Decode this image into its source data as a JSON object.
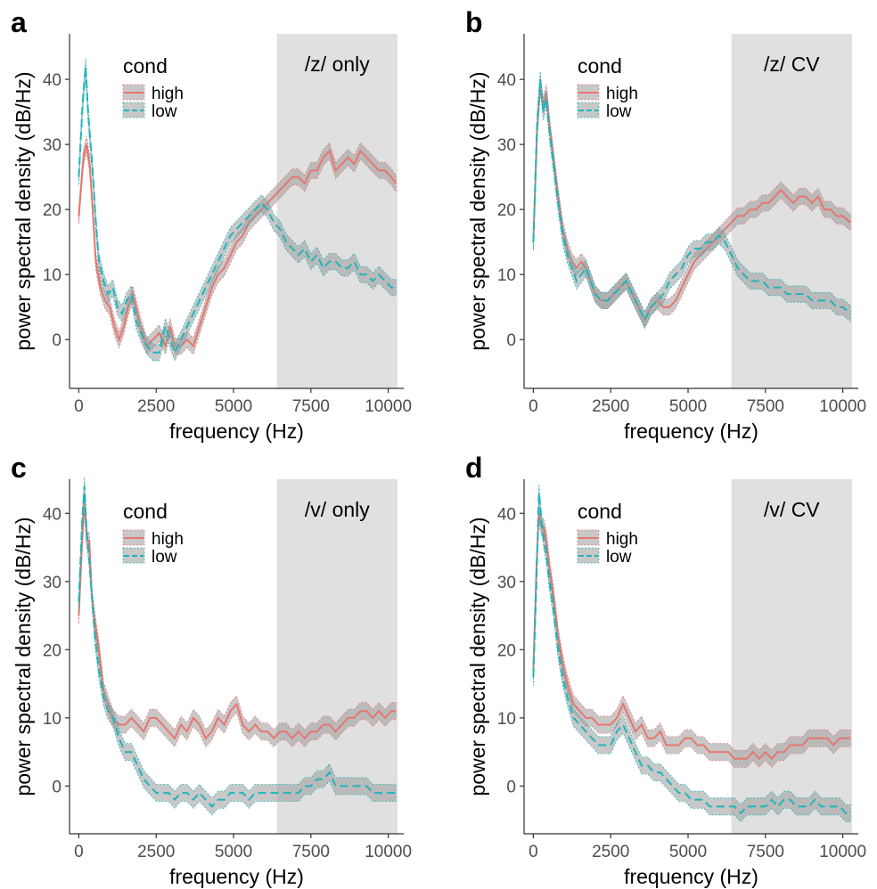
{
  "colors": {
    "high": "#E8766F",
    "low": "#1FB5BA",
    "ribbon": "#9a9a9a",
    "region": "#e0e0e0",
    "axis": "#333333"
  },
  "chart_data": [
    {
      "panel": "a",
      "type": "line",
      "xlabel": "frequency (Hz)",
      "ylabel": "power spectral density (dB/Hz)",
      "xlim": [
        -300,
        10500
      ],
      "ylim": [
        -7.5,
        47
      ],
      "xticks": [
        0,
        2500,
        5000,
        7500,
        10000
      ],
      "xtick_labels": [
        "0",
        "2500",
        "5000",
        "7500",
        "10000"
      ],
      "yticks": [
        0,
        10,
        20,
        30,
        40
      ],
      "ytick_labels": [
        "0",
        "10",
        "20",
        "30",
        "40"
      ],
      "region": {
        "x0": 6400,
        "x1": 10300,
        "label": "/z/ only"
      },
      "legend": {
        "title": "cond",
        "position": "top-left"
      },
      "series": [
        {
          "name": "high",
          "style": "solid",
          "x": [
            0,
            150,
            250,
            350,
            450,
            550,
            700,
            850,
            1000,
            1150,
            1300,
            1450,
            1600,
            1750,
            1850,
            2000,
            2200,
            2400,
            2600,
            2800,
            2950,
            3100,
            3300,
            3500,
            3700,
            3900,
            4100,
            4300,
            4500,
            4700,
            4900,
            5100,
            5300,
            5500,
            5700,
            5900,
            6100,
            6300,
            6500,
            6700,
            6900,
            7100,
            7300,
            7500,
            7700,
            7900,
            8100,
            8300,
            8500,
            8700,
            8900,
            9100,
            9300,
            9500,
            9700,
            9900,
            10100,
            10250
          ],
          "y": [
            19,
            28,
            30,
            27,
            20,
            12,
            8,
            6,
            5,
            2,
            0,
            2,
            5,
            7,
            5,
            2,
            -1,
            0,
            1,
            -1,
            2,
            -1,
            -1,
            0,
            -1,
            2,
            5,
            8,
            10,
            11,
            13,
            15,
            16,
            18,
            19,
            20,
            21,
            22,
            23,
            24,
            25,
            25,
            24,
            26,
            26,
            28,
            29,
            26,
            27,
            28,
            27,
            29,
            28,
            27,
            26,
            26,
            25,
            24
          ]
        },
        {
          "name": "low",
          "style": "dashed",
          "x": [
            0,
            120,
            220,
            300,
            380,
            460,
            550,
            650,
            800,
            950,
            1100,
            1250,
            1400,
            1550,
            1700,
            1850,
            2000,
            2200,
            2400,
            2600,
            2800,
            2950,
            3100,
            3300,
            3500,
            3700,
            3900,
            4100,
            4300,
            4500,
            4700,
            4900,
            5100,
            5300,
            5500,
            5700,
            5900,
            6100,
            6300,
            6500,
            6700,
            6900,
            7100,
            7300,
            7500,
            7700,
            7900,
            8100,
            8300,
            8500,
            8700,
            8900,
            9100,
            9300,
            9500,
            9700,
            9900,
            10100,
            10250
          ],
          "y": [
            25,
            36,
            42,
            35,
            30,
            25,
            18,
            12,
            9,
            7,
            8,
            5,
            4,
            6,
            7,
            3,
            1,
            -1,
            -2,
            -2,
            2,
            0,
            -2,
            0,
            2,
            4,
            6,
            8,
            10,
            12,
            14,
            16,
            17,
            18,
            19,
            20,
            21,
            20,
            18,
            17,
            15,
            14,
            13,
            14,
            12,
            13,
            11,
            12,
            12,
            11,
            11,
            12,
            10,
            10,
            9,
            10,
            9,
            8,
            8
          ]
        }
      ]
    },
    {
      "panel": "b",
      "type": "line",
      "xlabel": "frequency (Hz)",
      "ylabel": "power spectral density (dB/Hz)",
      "xlim": [
        -300,
        10500
      ],
      "ylim": [
        -7.5,
        47
      ],
      "xticks": [
        0,
        2500,
        5000,
        7500,
        10000
      ],
      "xtick_labels": [
        "0",
        "2500",
        "5000",
        "7500",
        "10000"
      ],
      "yticks": [
        0,
        10,
        20,
        30,
        40
      ],
      "ytick_labels": [
        "0",
        "10",
        "20",
        "30",
        "40"
      ],
      "region": {
        "x0": 6400,
        "x1": 10300,
        "label": "/z/ CV"
      },
      "legend": {
        "title": "cond",
        "position": "top-left"
      },
      "series": [
        {
          "name": "high",
          "style": "solid",
          "x": [
            0,
            120,
            220,
            320,
            420,
            520,
            650,
            800,
            950,
            1100,
            1250,
            1400,
            1550,
            1700,
            1850,
            2000,
            2200,
            2400,
            2600,
            2800,
            3000,
            3200,
            3400,
            3600,
            3800,
            4000,
            4200,
            4400,
            4600,
            4800,
            5000,
            5200,
            5400,
            5600,
            5800,
            6000,
            6200,
            6400,
            6600,
            6800,
            7000,
            7200,
            7400,
            7600,
            7800,
            8000,
            8200,
            8400,
            8600,
            8800,
            9000,
            9200,
            9400,
            9600,
            9800,
            10000,
            10250
          ],
          "y": [
            15,
            32,
            39,
            36,
            38,
            33,
            28,
            22,
            17,
            14,
            12,
            11,
            12,
            11,
            9,
            7,
            6,
            6,
            7,
            8,
            9,
            7,
            5,
            3,
            5,
            6,
            5,
            5,
            6,
            8,
            10,
            12,
            13,
            14,
            15,
            16,
            17,
            18,
            19,
            19,
            20,
            20,
            21,
            21,
            22,
            23,
            22,
            21,
            22,
            22,
            21,
            22,
            20,
            20,
            19,
            19,
            18
          ]
        },
        {
          "name": "low",
          "style": "dashed",
          "x": [
            0,
            120,
            220,
            320,
            420,
            520,
            650,
            800,
            950,
            1100,
            1250,
            1400,
            1550,
            1700,
            1850,
            2000,
            2200,
            2400,
            2600,
            2800,
            3000,
            3200,
            3400,
            3600,
            3800,
            4000,
            4200,
            4400,
            4600,
            4800,
            5000,
            5200,
            5400,
            5600,
            5800,
            6000,
            6200,
            6400,
            6600,
            6800,
            7000,
            7200,
            7400,
            7600,
            7800,
            8000,
            8200,
            8400,
            8600,
            8800,
            9000,
            9200,
            9400,
            9600,
            9800,
            10000,
            10250
          ],
          "y": [
            15,
            33,
            40,
            35,
            37,
            32,
            27,
            21,
            16,
            13,
            11,
            9,
            10,
            11,
            9,
            7,
            6,
            6,
            7,
            8,
            9,
            7,
            5,
            3,
            5,
            6,
            7,
            9,
            10,
            11,
            13,
            14,
            14,
            15,
            15,
            16,
            15,
            13,
            11,
            10,
            9,
            9,
            9,
            8,
            8,
            8,
            7,
            7,
            7,
            7,
            6,
            6,
            6,
            6,
            5,
            5,
            4
          ]
        }
      ]
    },
    {
      "panel": "c",
      "type": "line",
      "xlabel": "frequency (Hz)",
      "ylabel": "power spectral density (dB/Hz)",
      "xlim": [
        -300,
        10500
      ],
      "ylim": [
        -7,
        45
      ],
      "xticks": [
        0,
        2500,
        5000,
        7500,
        10000
      ],
      "xtick_labels": [
        "0",
        "2500",
        "5000",
        "7500",
        "10000"
      ],
      "yticks": [
        0,
        10,
        20,
        30,
        40
      ],
      "ytick_labels": [
        "0",
        "10",
        "20",
        "30",
        "40"
      ],
      "region": {
        "x0": 6400,
        "x1": 10300,
        "label": "/v/ only"
      },
      "legend": {
        "title": "cond",
        "position": "top-left"
      },
      "series": [
        {
          "name": "high",
          "style": "solid",
          "x": [
            0,
            100,
            180,
            260,
            340,
            420,
            520,
            650,
            800,
            950,
            1100,
            1300,
            1500,
            1700,
            1900,
            2100,
            2300,
            2500,
            2700,
            2900,
            3100,
            3300,
            3500,
            3700,
            3900,
            4100,
            4300,
            4500,
            4700,
            4900,
            5100,
            5300,
            5500,
            5700,
            5900,
            6100,
            6300,
            6500,
            6700,
            6900,
            7100,
            7300,
            7500,
            7700,
            7900,
            8100,
            8300,
            8500,
            8700,
            8900,
            9100,
            9300,
            9500,
            9700,
            9900,
            10100,
            10250
          ],
          "y": [
            25,
            35,
            42,
            36,
            36,
            28,
            24,
            20,
            14,
            12,
            10,
            9,
            9,
            10,
            9,
            8,
            10,
            10,
            9,
            8,
            7,
            9,
            8,
            10,
            9,
            7,
            8,
            10,
            9,
            11,
            12,
            9,
            8,
            9,
            8,
            8,
            7,
            8,
            8,
            7,
            8,
            7,
            8,
            8,
            9,
            9,
            8,
            9,
            10,
            10,
            11,
            11,
            10,
            11,
            10,
            11,
            11
          ]
        },
        {
          "name": "low",
          "style": "dashed",
          "x": [
            0,
            100,
            180,
            260,
            340,
            420,
            520,
            650,
            800,
            950,
            1100,
            1300,
            1500,
            1700,
            1900,
            2100,
            2300,
            2500,
            2700,
            2900,
            3100,
            3300,
            3500,
            3700,
            3900,
            4100,
            4300,
            4500,
            4700,
            4900,
            5100,
            5300,
            5500,
            5700,
            5900,
            6100,
            6300,
            6500,
            6700,
            6900,
            7100,
            7300,
            7500,
            7700,
            7900,
            8100,
            8300,
            8500,
            8700,
            8900,
            9100,
            9300,
            9500,
            9700,
            9900,
            10100,
            10250
          ],
          "y": [
            27,
            38,
            44,
            37,
            33,
            28,
            22,
            17,
            13,
            11,
            10,
            7,
            5,
            5,
            3,
            1,
            0,
            -1,
            -1,
            -1,
            -2,
            -1,
            -1,
            -2,
            -1,
            -2,
            -3,
            -2,
            -2,
            -1,
            -1,
            -1,
            -2,
            -1,
            -1,
            -1,
            -1,
            -1,
            -1,
            -1,
            -1,
            0,
            0,
            1,
            1,
            2,
            0,
            0,
            0,
            0,
            0,
            0,
            -1,
            -1,
            -1,
            -1,
            -1
          ]
        }
      ]
    },
    {
      "panel": "d",
      "type": "line",
      "xlabel": "frequency (Hz)",
      "ylabel": "power spectral density (dB/Hz)",
      "xlim": [
        -300,
        10500
      ],
      "ylim": [
        -7,
        45
      ],
      "xticks": [
        0,
        2500,
        5000,
        7500,
        10000
      ],
      "xtick_labels": [
        "0",
        "2500",
        "5000",
        "7500",
        "10000"
      ],
      "yticks": [
        0,
        10,
        20,
        30,
        40
      ],
      "ytick_labels": [
        "0",
        "10",
        "20",
        "30",
        "40"
      ],
      "region": {
        "x0": 6400,
        "x1": 10300,
        "label": "/v/ CV"
      },
      "legend": {
        "title": "cond",
        "position": "top-left"
      },
      "series": [
        {
          "name": "high",
          "style": "solid",
          "x": [
            0,
            100,
            180,
            260,
            340,
            420,
            520,
            650,
            800,
            950,
            1100,
            1300,
            1500,
            1700,
            1900,
            2100,
            2300,
            2500,
            2700,
            2900,
            3100,
            3300,
            3500,
            3700,
            3900,
            4100,
            4300,
            4500,
            4700,
            4900,
            5100,
            5300,
            5500,
            5700,
            5900,
            6100,
            6300,
            6500,
            6700,
            6900,
            7100,
            7300,
            7500,
            7700,
            7900,
            8100,
            8300,
            8500,
            8700,
            8900,
            9100,
            9300,
            9500,
            9700,
            9900,
            10100,
            10250
          ],
          "y": [
            17,
            32,
            40,
            38,
            38,
            36,
            32,
            28,
            22,
            18,
            15,
            12,
            11,
            10,
            10,
            9,
            9,
            9,
            10,
            12,
            10,
            8,
            9,
            7,
            7,
            8,
            6,
            6,
            6,
            7,
            7,
            6,
            6,
            5,
            5,
            5,
            5,
            4,
            4,
            4,
            5,
            4,
            5,
            4,
            5,
            5,
            6,
            6,
            6,
            7,
            7,
            7,
            7,
            6,
            7,
            7,
            7
          ]
        },
        {
          "name": "low",
          "style": "dashed",
          "x": [
            0,
            100,
            180,
            260,
            340,
            420,
            520,
            650,
            800,
            950,
            1100,
            1300,
            1500,
            1700,
            1900,
            2100,
            2300,
            2500,
            2700,
            2900,
            3100,
            3300,
            3500,
            3700,
            3900,
            4100,
            4300,
            4500,
            4700,
            4900,
            5100,
            5300,
            5500,
            5700,
            5900,
            6100,
            6300,
            6500,
            6700,
            6900,
            7100,
            7300,
            7500,
            7700,
            7900,
            8100,
            8300,
            8500,
            8700,
            8900,
            9100,
            9300,
            9500,
            9700,
            9900,
            10100,
            10250
          ],
          "y": [
            16,
            30,
            43,
            39,
            36,
            34,
            30,
            26,
            20,
            16,
            13,
            10,
            9,
            8,
            7,
            6,
            6,
            6,
            8,
            9,
            7,
            5,
            3,
            3,
            2,
            2,
            1,
            0,
            -1,
            -1,
            -2,
            -2,
            -2,
            -3,
            -3,
            -3,
            -3,
            -3,
            -4,
            -3,
            -3,
            -3,
            -3,
            -2,
            -3,
            -2,
            -2,
            -3,
            -3,
            -3,
            -2,
            -3,
            -3,
            -3,
            -3,
            -4,
            -4
          ]
        }
      ]
    }
  ]
}
